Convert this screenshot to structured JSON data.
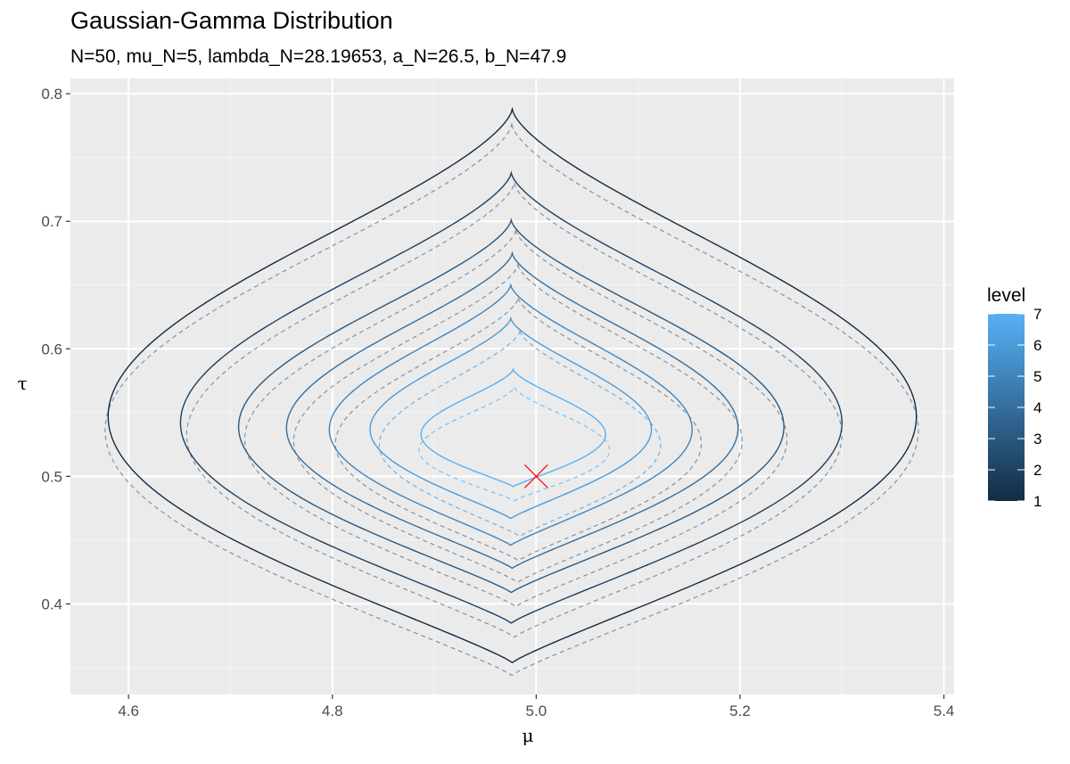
{
  "chart_data": {
    "type": "contour",
    "title": "Gaussian-Gamma Distribution",
    "subtitle": "N=50, mu_N=5, lambda_N=28.19653, a_N=26.5, b_N=47.9",
    "xlabel": "μ",
    "ylabel": "τ",
    "xlim": [
      4.543,
      5.41
    ],
    "ylim": [
      0.329,
      0.812
    ],
    "x_ticks": [
      4.6,
      4.8,
      5.0,
      5.2,
      5.4
    ],
    "x_tick_labels": [
      "4.6",
      "4.8",
      "5.0",
      "5.2",
      "5.4"
    ],
    "y_ticks": [
      0.4,
      0.5,
      0.6,
      0.7,
      0.8
    ],
    "y_tick_labels": [
      "0.4",
      "0.5",
      "0.6",
      "0.7",
      "0.8"
    ],
    "grid": true,
    "legend": {
      "title": "level",
      "placement": "right",
      "min": 1,
      "max": 7,
      "labels": [
        "1",
        "2",
        "3",
        "4",
        "5",
        "6",
        "7"
      ],
      "color_low": "#132B43",
      "color_high": "#56B1F7"
    },
    "solid_contours": [
      {
        "level": 1,
        "x_left": 4.58,
        "x_right": 5.373,
        "y_bottom": 0.354,
        "y_top": 0.788
      },
      {
        "level": 2,
        "x_left": 4.651,
        "x_right": 5.3,
        "y_bottom": 0.385,
        "y_top": 0.738
      },
      {
        "level": 3,
        "x_left": 4.708,
        "x_right": 5.243,
        "y_bottom": 0.409,
        "y_top": 0.701
      },
      {
        "level": 4,
        "x_left": 4.755,
        "x_right": 5.198,
        "y_bottom": 0.428,
        "y_top": 0.675
      },
      {
        "level": 5,
        "x_left": 4.797,
        "x_right": 5.153,
        "y_bottom": 0.446,
        "y_top": 0.65
      },
      {
        "level": 6,
        "x_left": 4.837,
        "x_right": 5.113,
        "y_bottom": 0.467,
        "y_top": 0.624
      },
      {
        "level": 7,
        "x_left": 4.887,
        "x_right": 5.068,
        "y_bottom": 0.492,
        "y_top": 0.584
      }
    ],
    "dashed_contours": [
      {
        "level": 1,
        "x_left": 4.577,
        "x_right": 5.375,
        "y_bottom": 0.344,
        "y_top": 0.776
      },
      {
        "level": 2,
        "x_left": 4.657,
        "x_right": 5.3,
        "y_bottom": 0.374,
        "y_top": 0.73
      },
      {
        "level": 3,
        "x_left": 4.714,
        "x_right": 5.246,
        "y_bottom": 0.398,
        "y_top": 0.693
      },
      {
        "level": 4,
        "x_left": 4.762,
        "x_right": 5.202,
        "y_bottom": 0.417,
        "y_top": 0.666
      },
      {
        "level": 5,
        "x_left": 4.803,
        "x_right": 5.162,
        "y_bottom": 0.434,
        "y_top": 0.64
      },
      {
        "level": 6,
        "x_left": 4.846,
        "x_right": 5.122,
        "y_bottom": 0.453,
        "y_top": 0.614
      },
      {
        "level": 7,
        "x_left": 4.885,
        "x_right": 5.072,
        "y_bottom": 0.481,
        "y_top": 0.57
      }
    ],
    "marker": {
      "x": 5.0,
      "y": 0.5,
      "shape": "x",
      "color": "#FF0000"
    },
    "dashed_color": "#7a8898"
  }
}
